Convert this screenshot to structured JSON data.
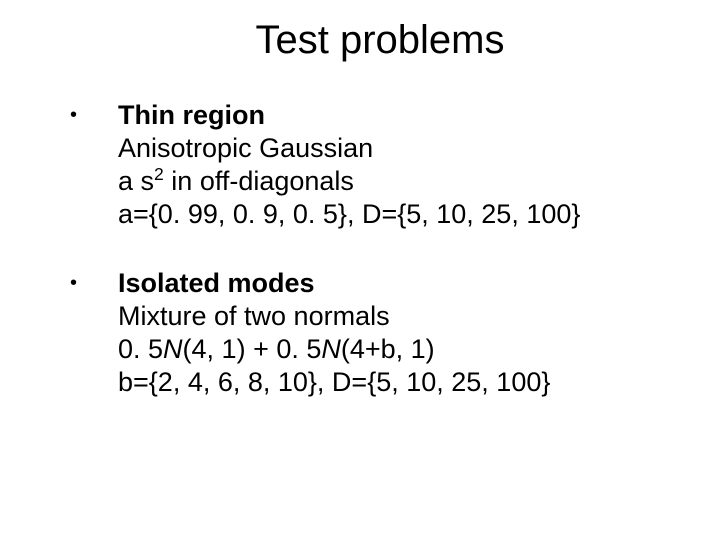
{
  "title": "Test problems",
  "title_fontsize": 40,
  "body_fontsize": 27,
  "line_height": 33,
  "background_color": "#ffffff",
  "text_color": "#000000",
  "font_family": "Arial",
  "bullets": [
    {
      "heading": "Thin region",
      "lines": [
        {
          "text": "Anisotropic Gaussian"
        },
        {
          "pre": "a s",
          "sup": "2",
          "post": " in off-diagonals"
        },
        {
          "text": "a={0. 99, 0. 9, 0. 5}, D={5, 10, 25, 100}"
        }
      ]
    },
    {
      "heading": "Isolated modes",
      "lines": [
        {
          "text": "Mixture of two normals"
        },
        {
          "segments": [
            {
              "text": "0. 5"
            },
            {
              "text": "N",
              "italic": true
            },
            {
              "text": "(4, 1) + 0. 5"
            },
            {
              "text": "N",
              "italic": true
            },
            {
              "text": "(4+b, 1)"
            }
          ]
        },
        {
          "text": "b={2, 4, 6, 8, 10}, D={5, 10, 25, 100}"
        }
      ]
    }
  ]
}
